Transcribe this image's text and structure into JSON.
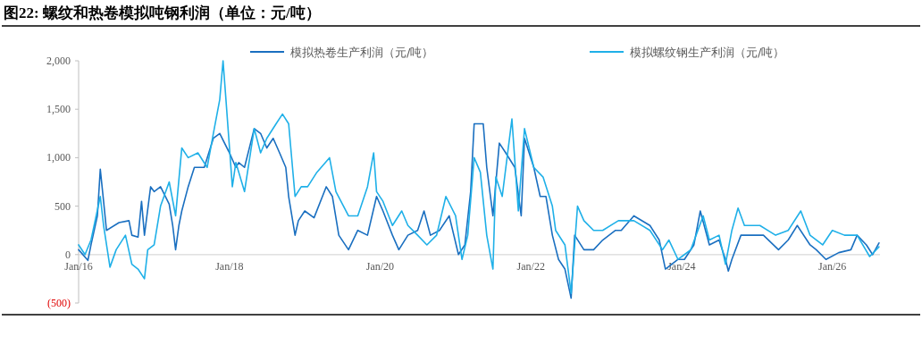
{
  "chart_data": {
    "type": "line",
    "title": "图22:  螺纹和热卷模拟吨钢利润（单位：元/吨）",
    "legend": "top",
    "xlim": [
      "2016-01-01",
      "2026-08-20"
    ],
    "xticks": [
      {
        "value": "2016-01-01",
        "label": "Jan/16"
      },
      {
        "value": "2018-01-01",
        "label": "Jan/18"
      },
      {
        "value": "2020-01-01",
        "label": "Jan/20"
      },
      {
        "value": "2022-01-01",
        "label": "Jan/22"
      },
      {
        "value": "2024-01-01",
        "label": "Jan/24"
      },
      {
        "value": "2026-01-01",
        "label": "Jan/26"
      }
    ],
    "ylim": [
      -500,
      2000
    ],
    "yticks": [
      {
        "value": -500,
        "label": "(500)"
      },
      {
        "value": 0,
        "label": "0"
      },
      {
        "value": 500,
        "label": "500"
      },
      {
        "value": 1000,
        "label": "1,000"
      },
      {
        "value": 1500,
        "label": "1,500"
      },
      {
        "value": 2000,
        "label": "2,000"
      }
    ],
    "series": [
      {
        "name": "模拟热卷生产利润（元/吨）",
        "color": "#1a6fc0",
        "x": [
          "2016-01-01",
          "2016-02-15",
          "2016-03-01",
          "2016-04-01",
          "2016-04-15",
          "2016-05-01",
          "2016-05-15",
          "2016-07-15",
          "2016-09-01",
          "2016-09-15",
          "2016-10-15",
          "2016-11-01",
          "2016-11-15",
          "2016-12-15",
          "2017-01-01",
          "2017-02-01",
          "2017-03-15",
          "2017-04-01",
          "2017-04-15",
          "2017-05-01",
          "2017-05-15",
          "2017-06-15",
          "2017-07-15",
          "2017-09-01",
          "2017-10-15",
          "2017-11-15",
          "2018-01-01",
          "2018-02-01",
          "2018-02-15",
          "2018-03-15",
          "2018-05-01",
          "2018-06-01",
          "2018-07-01",
          "2018-08-01",
          "2018-09-01",
          "2018-10-01",
          "2018-10-15",
          "2018-11-15",
          "2018-12-01",
          "2019-01-01",
          "2019-02-15",
          "2019-04-15",
          "2019-05-15",
          "2019-06-15",
          "2019-08-01",
          "2019-09-15",
          "2019-11-01",
          "2019-12-15",
          "2020-01-15",
          "2020-03-01",
          "2020-04-01",
          "2020-05-15",
          "2020-07-01",
          "2020-08-01",
          "2020-09-01",
          "2020-10-15",
          "2020-12-01",
          "2021-01-15",
          "2021-02-15",
          "2021-03-15",
          "2021-04-01",
          "2021-05-15",
          "2021-06-01",
          "2021-07-01",
          "2021-08-01",
          "2021-09-01",
          "2021-10-15",
          "2021-11-15",
          "2021-12-01",
          "2022-01-15",
          "2022-02-15",
          "2022-03-15",
          "2022-04-15",
          "2022-05-15",
          "2022-06-15",
          "2022-07-15",
          "2022-08-01",
          "2022-09-15",
          "2022-11-01",
          "2022-12-15",
          "2023-02-15",
          "2023-03-15",
          "2023-05-15",
          "2023-08-01",
          "2023-09-15",
          "2023-10-15",
          "2023-12-15",
          "2024-01-15",
          "2024-03-01",
          "2024-04-01",
          "2024-05-15",
          "2024-07-01",
          "2024-08-01",
          "2024-08-15",
          "2024-09-01",
          "2024-10-15",
          "2024-12-01",
          "2025-02-01",
          "2025-04-15",
          "2025-06-01",
          "2025-07-15",
          "2025-09-15",
          "2025-10-15",
          "2025-12-01",
          "2026-02-01",
          "2026-04-01",
          "2026-05-01",
          "2026-06-15",
          "2026-07-15",
          "2026-08-15"
        ],
        "values": [
          50,
          -60,
          100,
          400,
          880,
          550,
          250,
          330,
          350,
          200,
          180,
          550,
          200,
          700,
          650,
          700,
          520,
          300,
          50,
          300,
          450,
          700,
          900,
          900,
          1200,
          1250,
          1050,
          900,
          950,
          900,
          1300,
          1250,
          1100,
          1200,
          1050,
          900,
          600,
          200,
          350,
          450,
          380,
          700,
          600,
          200,
          50,
          250,
          200,
          600,
          450,
          200,
          50,
          200,
          250,
          450,
          200,
          250,
          400,
          0,
          100,
          650,
          1350,
          1350,
          900,
          400,
          1150,
          1050,
          900,
          400,
          1200,
          900,
          600,
          600,
          200,
          -50,
          -150,
          -450,
          200,
          50,
          50,
          150,
          250,
          250,
          400,
          300,
          150,
          -150,
          -50,
          -50,
          100,
          450,
          100,
          150,
          -50,
          -170,
          -50,
          200,
          200,
          200,
          50,
          150,
          300,
          100,
          50,
          -50,
          20,
          50,
          200,
          100,
          0,
          120
        ]
      },
      {
        "name": "模拟螺纹钢生产利润（元/吨）",
        "color": "#1fb0e8",
        "x": [
          "2016-01-01",
          "2016-02-01",
          "2016-03-01",
          "2016-04-15",
          "2016-05-01",
          "2016-06-01",
          "2016-07-01",
          "2016-08-15",
          "2016-09-15",
          "2016-10-15",
          "2016-11-15",
          "2016-12-01",
          "2017-01-01",
          "2017-02-01",
          "2017-03-15",
          "2017-04-15",
          "2017-05-15",
          "2017-06-15",
          "2017-08-01",
          "2017-09-15",
          "2017-10-15",
          "2017-11-15",
          "2017-12-01",
          "2017-12-15",
          "2018-01-15",
          "2018-02-01",
          "2018-03-15",
          "2018-05-01",
          "2018-06-01",
          "2018-07-01",
          "2018-08-15",
          "2018-09-15",
          "2018-10-15",
          "2018-11-15",
          "2018-12-15",
          "2019-01-15",
          "2019-03-01",
          "2019-05-01",
          "2019-06-01",
          "2019-08-01",
          "2019-09-15",
          "2019-11-01",
          "2019-12-01",
          "2019-12-15",
          "2020-01-15",
          "2020-03-01",
          "2020-04-15",
          "2020-05-15",
          "2020-07-01",
          "2020-08-15",
          "2020-10-01",
          "2020-11-15",
          "2021-01-01",
          "2021-02-01",
          "2021-03-01",
          "2021-04-01",
          "2021-05-01",
          "2021-06-01",
          "2021-07-01",
          "2021-07-15",
          "2021-08-15",
          "2021-10-01",
          "2021-11-01",
          "2021-12-01",
          "2022-01-15",
          "2022-03-01",
          "2022-04-15",
          "2022-05-01",
          "2022-06-15",
          "2022-07-15",
          "2022-08-15",
          "2022-09-15",
          "2022-11-01",
          "2022-12-15",
          "2023-03-01",
          "2023-05-15",
          "2023-08-01",
          "2023-10-01",
          "2023-11-01",
          "2023-12-15",
          "2024-02-15",
          "2024-04-15",
          "2024-05-15",
          "2024-07-01",
          "2024-08-01",
          "2024-09-01",
          "2024-10-01",
          "2024-11-01",
          "2025-01-15",
          "2025-04-01",
          "2025-06-01",
          "2025-08-01",
          "2025-09-15",
          "2025-11-15",
          "2026-01-01",
          "2026-03-01",
          "2026-05-01",
          "2026-07-01",
          "2026-08-15"
        ],
        "values": [
          100,
          0,
          150,
          600,
          300,
          -130,
          50,
          200,
          -100,
          -150,
          -250,
          50,
          100,
          500,
          750,
          400,
          1100,
          1000,
          1050,
          900,
          1250,
          1600,
          2000,
          1600,
          700,
          950,
          650,
          1300,
          1050,
          1200,
          1350,
          1450,
          1350,
          600,
          700,
          700,
          850,
          1000,
          650,
          400,
          400,
          700,
          1050,
          650,
          550,
          300,
          450,
          300,
          200,
          100,
          200,
          600,
          400,
          -50,
          200,
          1000,
          850,
          200,
          -150,
          800,
          600,
          1400,
          450,
          1300,
          900,
          800,
          500,
          250,
          100,
          -400,
          500,
          350,
          250,
          250,
          350,
          350,
          250,
          50,
          150,
          -50,
          50,
          400,
          150,
          200,
          -100,
          250,
          480,
          300,
          300,
          200,
          250,
          450,
          200,
          100,
          250,
          200,
          200,
          -20,
          80
        ]
      }
    ]
  }
}
